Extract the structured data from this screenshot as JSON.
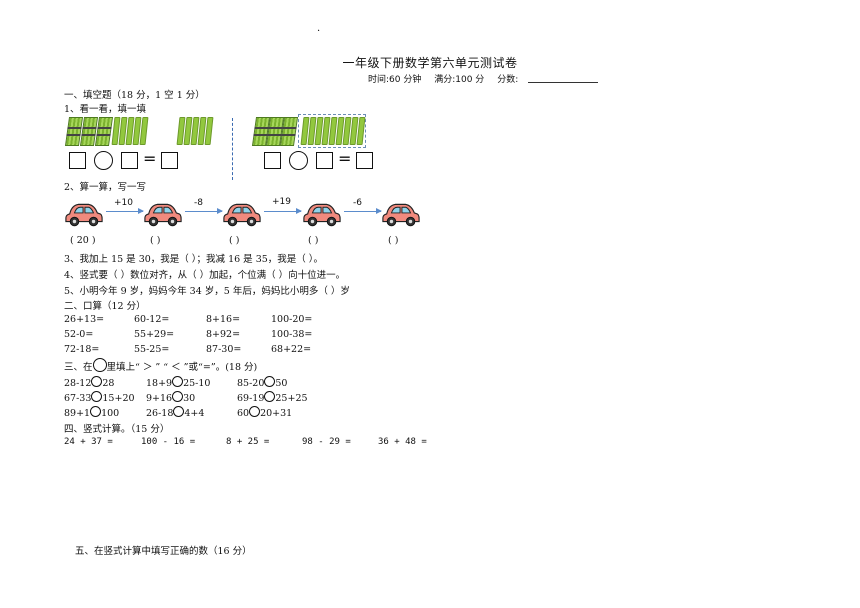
{
  "header": {
    "dot": "·",
    "title": "一年级下册数学第六单元测试卷",
    "time_label": "时间:60 分钟",
    "score_label": "满分:100 分",
    "grade_label": "分数:"
  },
  "section1": {
    "heading": "一、填空题（18 分，1 空 1 分）",
    "q1": "1、看一看，填一填",
    "eq_sign": "=",
    "q2": "2、算一算，写一写",
    "ops": [
      "+10",
      "-8",
      "+19",
      "-6"
    ],
    "answers": [
      "( 20 )",
      "(     )",
      "(     )",
      "(     )",
      "(     )"
    ],
    "q3": "3、我加上 15 是 30，我是（     ）；我减 16 是 35，我是（   ）。",
    "q4": "4、竖式要（  ）数位对齐，从（   ）加起，个位满（   ）向十位进一。",
    "q5": "5、小明今年 9 岁，妈妈今年 34 岁，5 年后，妈妈比小明多（   ）岁"
  },
  "section2": {
    "heading": "二、口算（12 分）",
    "rows": [
      [
        "26+13=",
        "60-12=",
        "8+16=",
        "100-20="
      ],
      [
        "52-0=",
        "55+29=",
        "8+92=",
        "100-38="
      ],
      [
        "72-18=",
        "55-25=",
        "87-30=",
        "68+22="
      ]
    ]
  },
  "section3": {
    "heading_pre": "三、在",
    "heading_post": "里填上“ ＞ ” “ ＜ ”或“=”。(18 分)",
    "rows": [
      [
        [
          "28-12",
          "28"
        ],
        [
          "18+9",
          "25-10"
        ],
        [
          "85-20",
          "50"
        ]
      ],
      [
        [
          "67-33",
          "15+20"
        ],
        [
          "9+16",
          "30"
        ],
        [
          "69-19",
          "25+25"
        ]
      ],
      [
        [
          "89+1",
          "100"
        ],
        [
          "26-18",
          "4+4"
        ],
        [
          "60",
          "20+31"
        ]
      ]
    ]
  },
  "section4": {
    "heading": "四、竖式计算。（15 分）",
    "items": [
      "24 + 37 =",
      "100 - 16 =",
      "8 + 25 =",
      "98 - 29 =",
      "36 + 48 ="
    ]
  },
  "section5": {
    "heading": "五、在竖式计算中填写正确的数（16 分）"
  }
}
